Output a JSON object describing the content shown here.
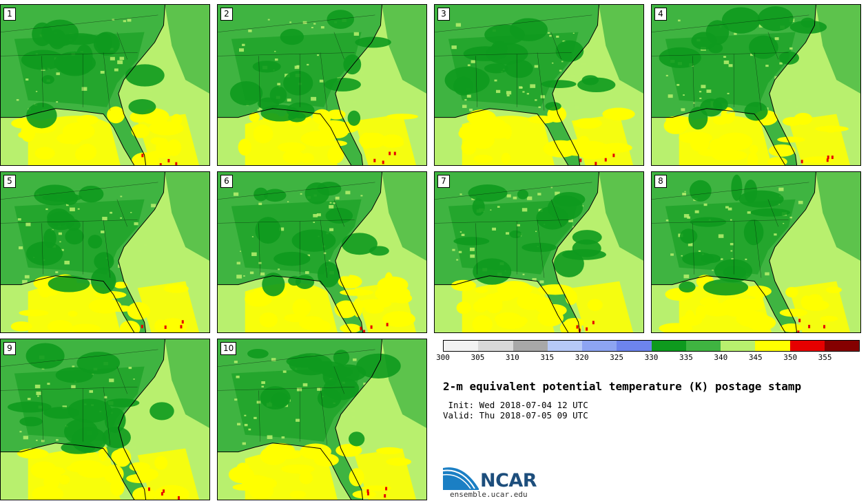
{
  "title": "2-m equivalent potential temperature (K) postage stamp",
  "init_line": " Init: Wed 2018-07-04 12 UTC",
  "valid_line": "Valid: Thu 2018-07-05 09 UTC",
  "panels": [
    {
      "label": "1"
    },
    {
      "label": "2"
    },
    {
      "label": "3"
    },
    {
      "label": "4"
    },
    {
      "label": "5"
    },
    {
      "label": "6"
    },
    {
      "label": "7"
    },
    {
      "label": "8"
    },
    {
      "label": "9"
    },
    {
      "label": "10"
    }
  ],
  "colorbar": {
    "ticks": [
      "300",
      "305",
      "310",
      "315",
      "320",
      "325",
      "330",
      "335",
      "340",
      "345",
      "350",
      "355"
    ],
    "colors": [
      "#f2f2f2",
      "#d9d9d9",
      "#a8a8a8",
      "#b6c9f7",
      "#8da4f2",
      "#6d84ee",
      "#0e9a1e",
      "#3fb441",
      "#b8f06e",
      "#ffff00",
      "#e60000",
      "#850000"
    ]
  },
  "logo": {
    "text": "NCAR",
    "url": "ensemble.ucar.edu"
  },
  "map_colors": {
    "land_dark": "#0e9a1e",
    "land_mid": "#3fb441",
    "ocean": "#b8f06e",
    "hot": "#ffff00",
    "very_hot": "#e60000",
    "cold": "#6d84ee"
  }
}
